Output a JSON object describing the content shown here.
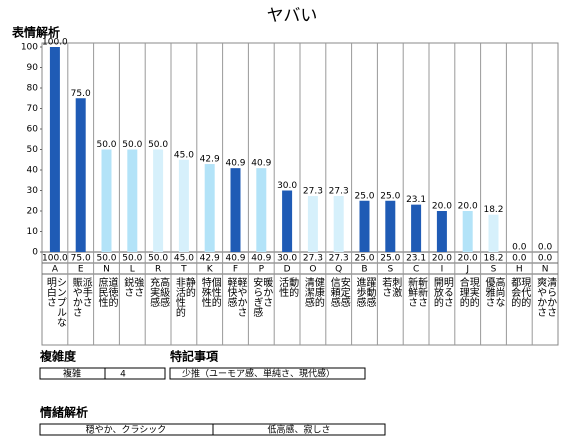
{
  "title": "ヤバい",
  "chart_data": {
    "type": "bar",
    "title": "表情解析",
    "categories": [
      "A",
      "E",
      "N",
      "L",
      "R",
      "T",
      "K",
      "F",
      "P",
      "D",
      "O",
      "Q",
      "B",
      "S",
      "C",
      "I",
      "J",
      "S",
      "H",
      "N"
    ],
    "category_labels": [
      [
        "明白さ",
        "シンプルな"
      ],
      [
        "賑やかさ",
        "派手さ"
      ],
      [
        "庶民性",
        "道徳的"
      ],
      [
        "鋭さ",
        "強さ"
      ],
      [
        "充実感",
        "高級感"
      ],
      [
        "非活性的",
        "静的"
      ],
      [
        "特殊性",
        "個性的"
      ],
      [
        "軽快感",
        "軽やかさ"
      ],
      [
        "安らぎ感",
        "暖かさ"
      ],
      [
        "活性",
        "動的"
      ],
      [
        "清潔感",
        "健康的"
      ],
      [
        "信頼感",
        "安定感"
      ],
      [
        "進歩感",
        "躍動感"
      ],
      [
        "若さ",
        "刺激"
      ],
      [
        "新鮮さ",
        "斬新さ"
      ],
      [
        "開放的",
        "明るさ"
      ],
      [
        "合理的",
        "現実的"
      ],
      [
        "優雅さ",
        "高尚な"
      ],
      [
        "都会的",
        "現代的"
      ],
      [
        "爽やかさ",
        "清らかさ"
      ]
    ],
    "values": [
      100,
      75,
      50,
      50,
      50,
      45,
      42.9,
      40.9,
      40.9,
      30,
      27.3,
      27.3,
      25,
      25,
      23.1,
      20,
      20,
      18.2,
      0,
      0
    ],
    "value_labels": [
      "100.0",
      "75.0",
      "50.0",
      "50.0",
      "50.0",
      "45.0",
      "42.9",
      "40.9",
      "40.9",
      "30.0",
      "27.3",
      "27.3",
      "25.0",
      "25.0",
      "23.1",
      "20.0",
      "20.0",
      "18.2",
      "0.0",
      "0.0"
    ],
    "colors": [
      "#1f5bb5",
      "#1f5bb5",
      "#b3e3f8",
      "#b3e3f8",
      "#d6f0fb",
      "#d6f0fb",
      "#b3e3f8",
      "#1f5bb5",
      "#b3e3f8",
      "#1f5bb5",
      "#d6f0fb",
      "#d6f0fb",
      "#1f5bb5",
      "#1f5bb5",
      "#1f5bb5",
      "#1f5bb5",
      "#b3e3f8",
      "#d6f0fb",
      "#1f5bb5",
      "#1f5bb5"
    ],
    "ylim": [
      0,
      100
    ],
    "yticks": [
      0,
      10,
      20,
      30,
      40,
      50,
      60,
      70,
      80,
      90,
      100
    ]
  },
  "complexity": {
    "title": "複雑度",
    "label": "複雑",
    "value": "4"
  },
  "notes": {
    "title": "特記事項",
    "text": "少推（ユーモア感、単純さ、現代感）"
  },
  "emotion": {
    "title": "情緒解析",
    "cells": [
      "穏やか、クラシック",
      "低高感、寂しさ"
    ]
  }
}
